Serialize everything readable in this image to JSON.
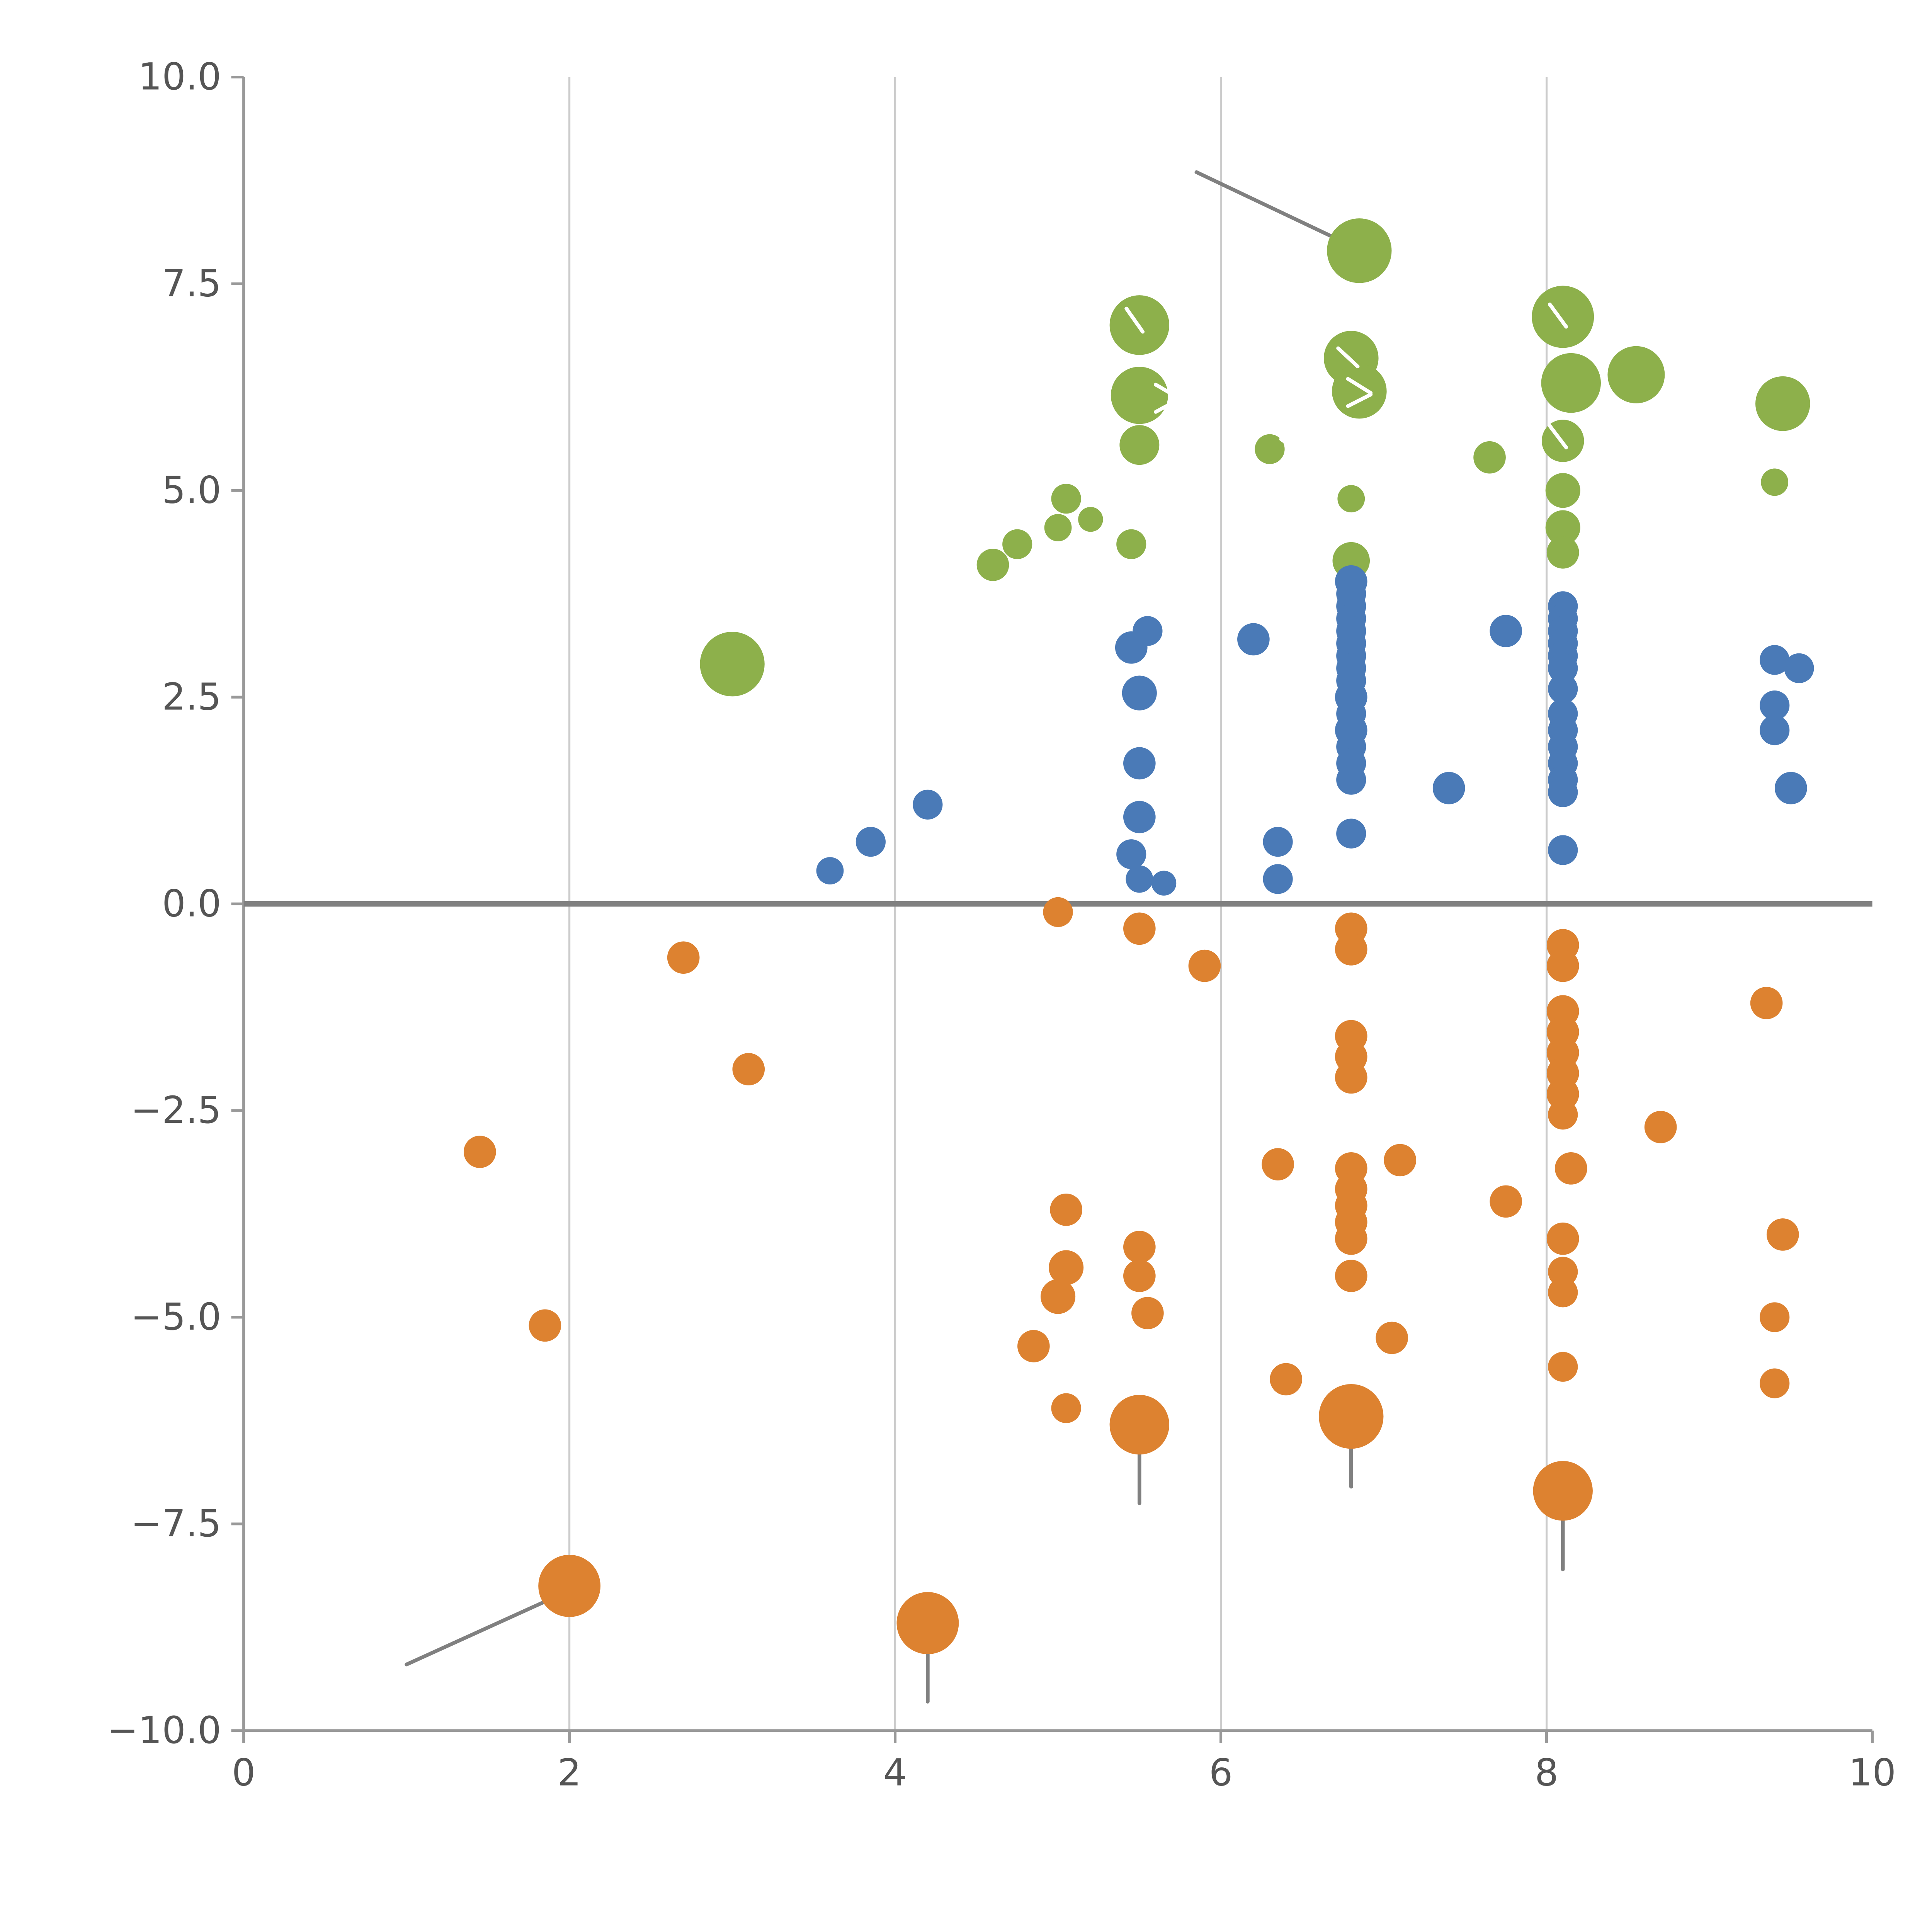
{
  "figure": {
    "title": "",
    "background": "#ffffff"
  },
  "chart_data": {
    "type": "scatter",
    "title": "",
    "xlabel": "",
    "ylabel": "",
    "xlim": [
      0,
      10
    ],
    "ylim": [
      -10,
      10
    ],
    "legend": "none",
    "grid": "vertical-only",
    "x_ticks": [
      [
        0,
        "0"
      ],
      [
        2,
        "2"
      ],
      [
        4,
        "4"
      ],
      [
        6,
        "6"
      ],
      [
        8,
        "8"
      ],
      [
        10,
        "10"
      ]
    ],
    "y_ticks": [
      [
        10,
        "10.0"
      ],
      [
        7.5,
        "7.5"
      ],
      [
        5,
        "5.0"
      ],
      [
        2.5,
        "2.5"
      ],
      [
        0,
        "0.0"
      ],
      [
        -2.5,
        "−2.5"
      ],
      [
        -5,
        "−5.0"
      ],
      [
        -7.5,
        "−7.5"
      ],
      [
        -10,
        "−10.0"
      ]
    ],
    "gridlines_x": [
      2,
      4,
      6,
      8
    ],
    "zero_line_y": 0,
    "colors": {
      "green": "#8db04b",
      "blue": "#4a7ab7",
      "orange": "#dd8230",
      "grid": "#cccccc",
      "spine": "#999999",
      "zero_line": "#808080",
      "tick_label": "#555555",
      "annotation": "#808080",
      "overlay": "#ffffff"
    },
    "series": [
      {
        "name": "green",
        "color": "#8db04b",
        "points": [
          [
            3.0,
            2.9,
            26
          ],
          [
            4.6,
            4.1,
            13
          ],
          [
            4.75,
            4.35,
            12
          ],
          [
            5.0,
            4.55,
            11
          ],
          [
            5.05,
            4.9,
            12
          ],
          [
            5.2,
            4.65,
            10
          ],
          [
            5.45,
            4.35,
            12
          ],
          [
            5.5,
            7.0,
            24
          ],
          [
            5.5,
            6.15,
            23
          ],
          [
            5.5,
            5.55,
            16
          ],
          [
            6.3,
            5.5,
            12
          ],
          [
            6.85,
            7.9,
            26
          ],
          [
            6.8,
            6.6,
            22
          ],
          [
            6.85,
            6.2,
            22
          ],
          [
            6.8,
            4.9,
            11
          ],
          [
            6.8,
            4.15,
            15
          ],
          [
            7.65,
            5.4,
            13
          ],
          [
            8.1,
            7.1,
            25
          ],
          [
            8.15,
            6.3,
            24
          ],
          [
            8.1,
            5.6,
            17
          ],
          [
            8.1,
            5.0,
            14
          ],
          [
            8.1,
            4.55,
            14
          ],
          [
            8.1,
            4.25,
            13
          ],
          [
            8.55,
            6.4,
            23
          ],
          [
            9.45,
            6.05,
            22
          ],
          [
            9.4,
            5.1,
            11
          ]
        ]
      },
      {
        "name": "blue",
        "color": "#4a7ab7",
        "points": [
          [
            3.6,
            0.4,
            11
          ],
          [
            3.85,
            0.75,
            12
          ],
          [
            4.2,
            1.2,
            12
          ],
          [
            5.45,
            3.1,
            13
          ],
          [
            5.55,
            3.3,
            12
          ],
          [
            5.5,
            2.55,
            14
          ],
          [
            5.5,
            1.7,
            13
          ],
          [
            5.5,
            1.05,
            13
          ],
          [
            5.45,
            0.6,
            12
          ],
          [
            5.5,
            0.3,
            11
          ],
          [
            5.65,
            0.25,
            10
          ],
          [
            6.2,
            3.2,
            13
          ],
          [
            6.35,
            0.75,
            12
          ],
          [
            6.35,
            0.3,
            12
          ],
          [
            6.8,
            3.9,
            13
          ],
          [
            6.8,
            3.75,
            12
          ],
          [
            6.8,
            3.6,
            12
          ],
          [
            6.8,
            3.45,
            12
          ],
          [
            6.8,
            3.3,
            12
          ],
          [
            6.8,
            3.15,
            12
          ],
          [
            6.8,
            3.0,
            12
          ],
          [
            6.8,
            2.85,
            12
          ],
          [
            6.8,
            2.7,
            12
          ],
          [
            6.8,
            2.5,
            13
          ],
          [
            6.8,
            2.3,
            12
          ],
          [
            6.8,
            2.1,
            13
          ],
          [
            6.8,
            1.9,
            12
          ],
          [
            6.8,
            1.7,
            12
          ],
          [
            6.8,
            1.5,
            12
          ],
          [
            6.8,
            0.85,
            12
          ],
          [
            7.4,
            1.4,
            13
          ],
          [
            7.75,
            3.3,
            13
          ],
          [
            8.1,
            3.6,
            12
          ],
          [
            8.1,
            3.45,
            12
          ],
          [
            8.1,
            3.3,
            12
          ],
          [
            8.1,
            3.15,
            12
          ],
          [
            8.1,
            3.0,
            12
          ],
          [
            8.1,
            2.85,
            12
          ],
          [
            8.1,
            2.6,
            12
          ],
          [
            8.1,
            2.3,
            12
          ],
          [
            8.1,
            2.1,
            12
          ],
          [
            8.1,
            1.9,
            12
          ],
          [
            8.1,
            1.7,
            12
          ],
          [
            8.1,
            1.5,
            12
          ],
          [
            8.1,
            1.35,
            12
          ],
          [
            8.1,
            0.65,
            12
          ],
          [
            9.4,
            2.95,
            12
          ],
          [
            9.55,
            2.85,
            12
          ],
          [
            9.4,
            2.4,
            12
          ],
          [
            9.4,
            2.1,
            12
          ],
          [
            9.5,
            1.4,
            13
          ]
        ]
      },
      {
        "name": "orange",
        "color": "#dd8230",
        "points": [
          [
            2.7,
            -0.65,
            13
          ],
          [
            3.1,
            -2.0,
            13
          ],
          [
            1.45,
            -3.0,
            13
          ],
          [
            1.85,
            -5.1,
            13
          ],
          [
            2.0,
            -8.25,
            25
          ],
          [
            4.2,
            -8.7,
            25
          ],
          [
            5.0,
            -0.1,
            12
          ],
          [
            5.5,
            -0.3,
            13
          ],
          [
            5.9,
            -0.75,
            13
          ],
          [
            5.05,
            -3.7,
            13
          ],
          [
            5.05,
            -4.4,
            14
          ],
          [
            5.0,
            -4.75,
            14
          ],
          [
            4.85,
            -5.35,
            13
          ],
          [
            5.5,
            -4.15,
            13
          ],
          [
            5.5,
            -4.5,
            13
          ],
          [
            5.55,
            -4.95,
            13
          ],
          [
            5.05,
            -6.1,
            12
          ],
          [
            5.5,
            -6.3,
            24
          ],
          [
            6.35,
            -3.15,
            13
          ],
          [
            6.8,
            -0.3,
            13
          ],
          [
            6.8,
            -0.55,
            13
          ],
          [
            6.8,
            -1.6,
            13
          ],
          [
            6.8,
            -1.85,
            13
          ],
          [
            6.8,
            -2.1,
            13
          ],
          [
            6.8,
            -3.2,
            13
          ],
          [
            6.8,
            -3.45,
            13
          ],
          [
            6.8,
            -3.65,
            13
          ],
          [
            6.8,
            -3.85,
            13
          ],
          [
            6.8,
            -4.05,
            13
          ],
          [
            6.8,
            -4.5,
            13
          ],
          [
            7.1,
            -3.1,
            13
          ],
          [
            7.05,
            -5.25,
            13
          ],
          [
            6.4,
            -5.75,
            13
          ],
          [
            6.8,
            -6.2,
            26
          ],
          [
            7.75,
            -3.6,
            13
          ],
          [
            8.1,
            -0.5,
            13
          ],
          [
            8.1,
            -0.75,
            13
          ],
          [
            8.1,
            -1.3,
            13
          ],
          [
            8.1,
            -1.55,
            13
          ],
          [
            8.1,
            -1.8,
            13
          ],
          [
            8.1,
            -2.05,
            13
          ],
          [
            8.1,
            -2.3,
            13
          ],
          [
            8.1,
            -2.55,
            12
          ],
          [
            8.15,
            -3.2,
            13
          ],
          [
            8.1,
            -4.05,
            13
          ],
          [
            8.1,
            -4.45,
            12
          ],
          [
            8.1,
            -4.7,
            12
          ],
          [
            8.1,
            -5.6,
            12
          ],
          [
            8.1,
            -7.1,
            24
          ],
          [
            8.7,
            -2.7,
            13
          ],
          [
            9.35,
            -1.2,
            13
          ],
          [
            9.45,
            -4.0,
            13
          ],
          [
            9.4,
            -5.0,
            12
          ],
          [
            9.4,
            -5.8,
            12
          ]
        ]
      }
    ],
    "annotation_lines": [
      {
        "x1": 5.85,
        "y1": 8.85,
        "x2": 6.78,
        "y2": 7.98
      },
      {
        "x1": 1.0,
        "y1": -9.2,
        "x2": 1.95,
        "y2": -8.35
      },
      {
        "x1": 5.5,
        "y1": -6.5,
        "x2": 5.5,
        "y2": -7.25
      },
      {
        "x1": 6.8,
        "y1": -6.4,
        "x2": 6.8,
        "y2": -7.05
      },
      {
        "x1": 8.1,
        "y1": -7.3,
        "x2": 8.1,
        "y2": -8.05
      },
      {
        "x1": 4.2,
        "y1": -8.9,
        "x2": 4.2,
        "y2": -9.65
      }
    ],
    "overlay_marks": [
      {
        "x1": 5.42,
        "y1": 7.2,
        "x2": 5.52,
        "y2": 6.92
      },
      {
        "x1": 5.6,
        "y1": 6.28,
        "x2": 5.74,
        "y2": 6.12
      },
      {
        "x1": 5.6,
        "y1": 5.95,
        "x2": 5.74,
        "y2": 6.1
      },
      {
        "x1": 6.72,
        "y1": 6.72,
        "x2": 6.84,
        "y2": 6.5
      },
      {
        "x1": 6.78,
        "y1": 6.35,
        "x2": 6.92,
        "y2": 6.18
      },
      {
        "x1": 6.78,
        "y1": 6.02,
        "x2": 6.92,
        "y2": 6.16
      },
      {
        "x1": 8.02,
        "y1": 7.25,
        "x2": 8.12,
        "y2": 6.98
      },
      {
        "x1": 8.02,
        "y1": 5.78,
        "x2": 8.12,
        "y2": 5.52
      },
      {
        "x1": 6.37,
        "y1": 5.62,
        "x2": 6.47,
        "y2": 5.48
      }
    ]
  }
}
